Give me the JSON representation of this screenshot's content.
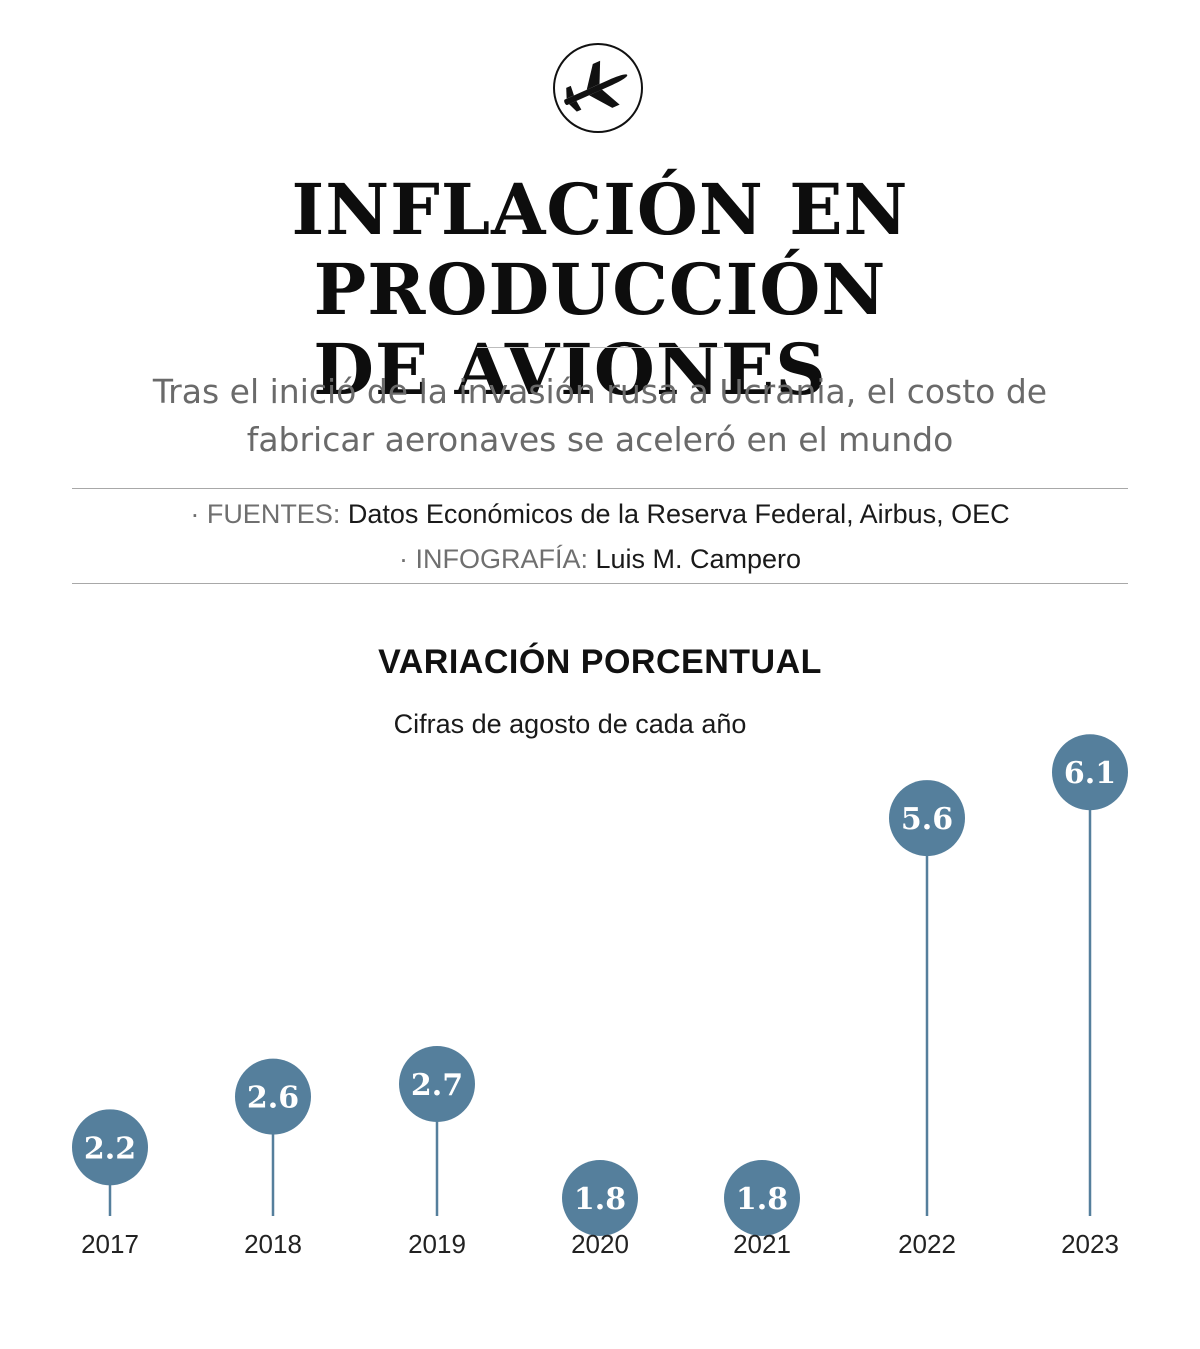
{
  "header": {
    "icon": "airplane-icon",
    "title_line1": "INFLACIÓN EN PRODUCCIÓN",
    "title_line2": "DE AVIONES",
    "subtitle": "Tras el inició de la invasión rusa a Ucrania, el costo de fabricar aeronaves se aceleró en el mundo"
  },
  "credits": {
    "sources_label": "· FUENTES:",
    "sources_value": "Datos Económicos de la Reserva Federal, Airbus, OEC",
    "graphics_label": "· INFOGRAFÍA:",
    "graphics_value": "Luis M. Campero"
  },
  "colors": {
    "marker": "#557f9c",
    "stem": "#557f9c"
  },
  "chart_data": {
    "type": "lollipop",
    "title": "VARIACIÓN PORCENTUAL",
    "subtitle": "Cifras de agosto de cada año",
    "categories": [
      "2017",
      "2018",
      "2019",
      "2020",
      "2021",
      "2022",
      "2023"
    ],
    "values": [
      2.2,
      2.6,
      2.7,
      1.8,
      1.8,
      5.6,
      6.1
    ],
    "value_labels": [
      "2.2",
      "2.6",
      "2.7",
      "1.8",
      "1.8",
      "5.6",
      "6.1"
    ],
    "ylim": [
      0,
      6.1
    ],
    "grid": false
  }
}
